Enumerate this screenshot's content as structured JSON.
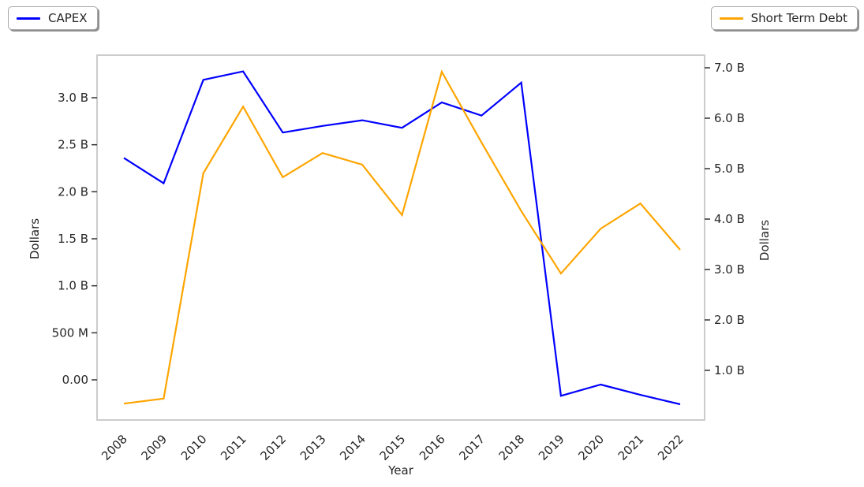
{
  "chart_data": {
    "type": "line",
    "title": "",
    "xlabel": "Year",
    "ylabel_left": "Dollars",
    "ylabel_right": "Dollars",
    "x_labels": [
      "2008",
      "2009",
      "2010",
      "2011",
      "2012",
      "2013",
      "2014",
      "2015",
      "2016",
      "2017",
      "2018",
      "2019",
      "2020",
      "2021",
      "2022"
    ],
    "units": "billions of dollars",
    "series": [
      {
        "name": "CAPEX",
        "axis": "left",
        "color": "#0000ff",
        "values": [
          2.36,
          2.09,
          3.19,
          3.28,
          2.63,
          2.7,
          2.76,
          2.68,
          2.95,
          2.81,
          3.16,
          -0.17,
          -0.05,
          -0.16,
          -0.26
        ]
      },
      {
        "name": "Short Term Debt",
        "axis": "right",
        "color": "#ffa500",
        "values": [
          0.34,
          0.44,
          4.91,
          6.23,
          4.83,
          5.31,
          5.08,
          4.08,
          6.92,
          5.52,
          4.16,
          2.92,
          3.81,
          4.31,
          3.39
        ]
      }
    ],
    "left_axis": {
      "tick_values": [
        3.0,
        2.5,
        2.0,
        1.5,
        1.0,
        0.5,
        0.0
      ],
      "tick_labels": [
        "3.0 B",
        "2.5 B",
        "2.0 B",
        "1.5 B",
        "1.0 B",
        "500 M",
        "0.00"
      ],
      "range": [
        -0.42,
        3.45
      ]
    },
    "right_axis": {
      "tick_values": [
        7.0,
        6.0,
        5.0,
        4.0,
        3.0,
        2.0,
        1.0
      ],
      "tick_labels": [
        "7.0 B",
        "6.0 B",
        "5.0 B",
        "4.0 B",
        "3.0 B",
        "2.0 B",
        "1.0 B"
      ],
      "range": [
        0.03,
        7.25
      ]
    },
    "legend": [
      {
        "label": "CAPEX",
        "position": "top-left"
      },
      {
        "label": "Short Term Debt",
        "position": "top-right"
      }
    ],
    "grid": false,
    "colors": {
      "frame": "#cccccc",
      "tick_mark": "#333333",
      "text": "#262626",
      "background": "#ffffff"
    }
  }
}
